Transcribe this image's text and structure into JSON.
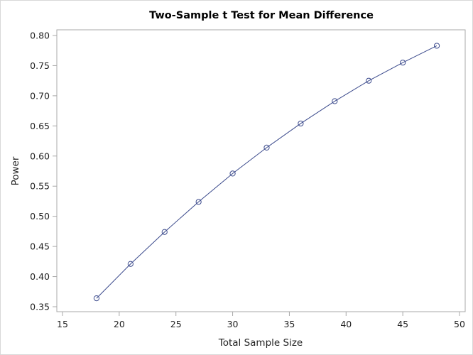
{
  "chart_data": {
    "type": "line",
    "title": "Two-Sample t Test for Mean Difference",
    "xlabel": "Total Sample Size",
    "ylabel": "Power",
    "xlim": [
      15,
      50
    ],
    "ylim": [
      0.35,
      0.8
    ],
    "xticks": [
      "15",
      "20",
      "25",
      "30",
      "35",
      "40",
      "45",
      "50"
    ],
    "yticks": [
      "0.35",
      "0.40",
      "0.45",
      "0.50",
      "0.55",
      "0.60",
      "0.65",
      "0.70",
      "0.75",
      "0.80"
    ],
    "grid": false,
    "markers": "open-circle",
    "color": "#3b4a8c",
    "x": [
      18,
      21,
      24,
      27,
      30,
      33,
      36,
      39,
      42,
      45,
      48
    ],
    "y": [
      0.364,
      0.421,
      0.474,
      0.524,
      0.571,
      0.614,
      0.654,
      0.691,
      0.725,
      0.755,
      0.783
    ]
  }
}
